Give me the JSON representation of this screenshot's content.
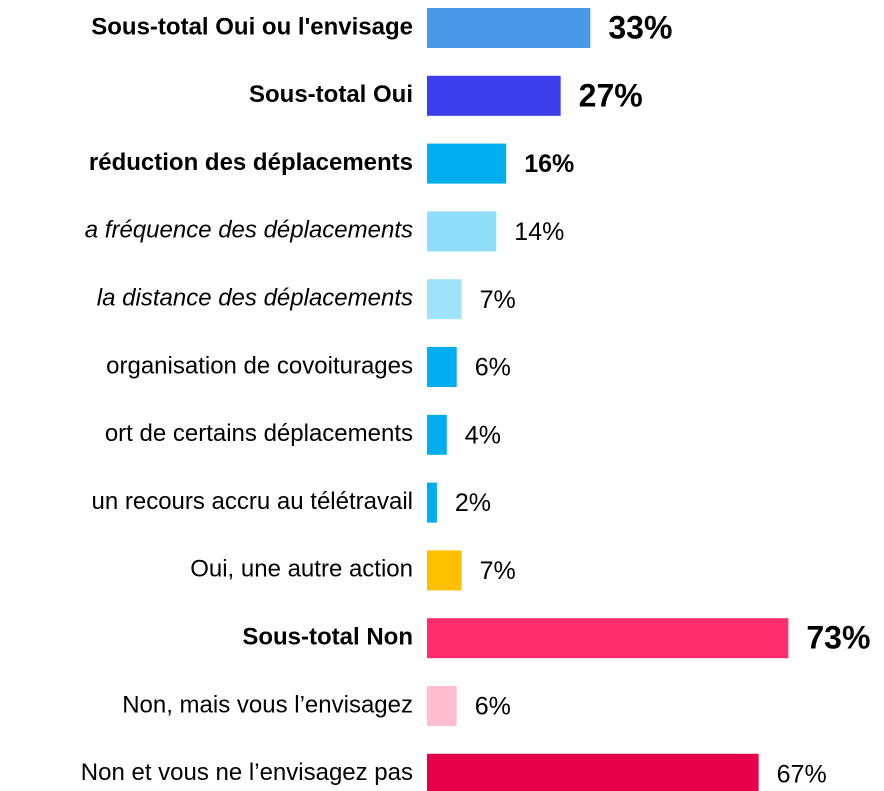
{
  "chart_data": {
    "type": "barh",
    "categories": [
      "Sous-total Oui ou l'envisage",
      "Sous-total Oui",
      "réduction des déplacements",
      "a fréquence des déplacements",
      "la distance des déplacements",
      "organisation de covoiturages",
      "ort de certains déplacements",
      "un recours accru au télétravail",
      "Oui, une autre action",
      "Sous-total Non",
      "Non, mais vous l’envisagez",
      "Non et vous ne l’envisagez pas"
    ],
    "values": [
      33,
      27,
      16,
      14,
      7,
      6,
      4,
      2,
      7,
      73,
      6,
      67
    ],
    "value_labels": [
      "33%",
      "27%",
      "16%",
      "14%",
      "7%",
      "6%",
      "4%",
      "2%",
      "7%",
      "73%",
      "6%",
      "67%"
    ],
    "colors": [
      "#4a98e8",
      "#3b3eea",
      "#00aeef",
      "#8fdffb",
      "#9fe3fa",
      "#00aeef",
      "#00aeef",
      "#00aeef",
      "#ffc000",
      "#ff2d6b",
      "#ffbdd1",
      "#e6004a"
    ],
    "label_styles": [
      "bold",
      "bold",
      "bold",
      "italic",
      "italic",
      "normal",
      "normal",
      "normal",
      "normal",
      "bold",
      "normal",
      "normal"
    ],
    "value_label_styles": [
      "large",
      "large",
      "bold",
      "normal",
      "normal",
      "normal",
      "normal",
      "normal",
      "normal",
      "large",
      "normal",
      "normal"
    ],
    "xlim": [
      0,
      80
    ]
  }
}
